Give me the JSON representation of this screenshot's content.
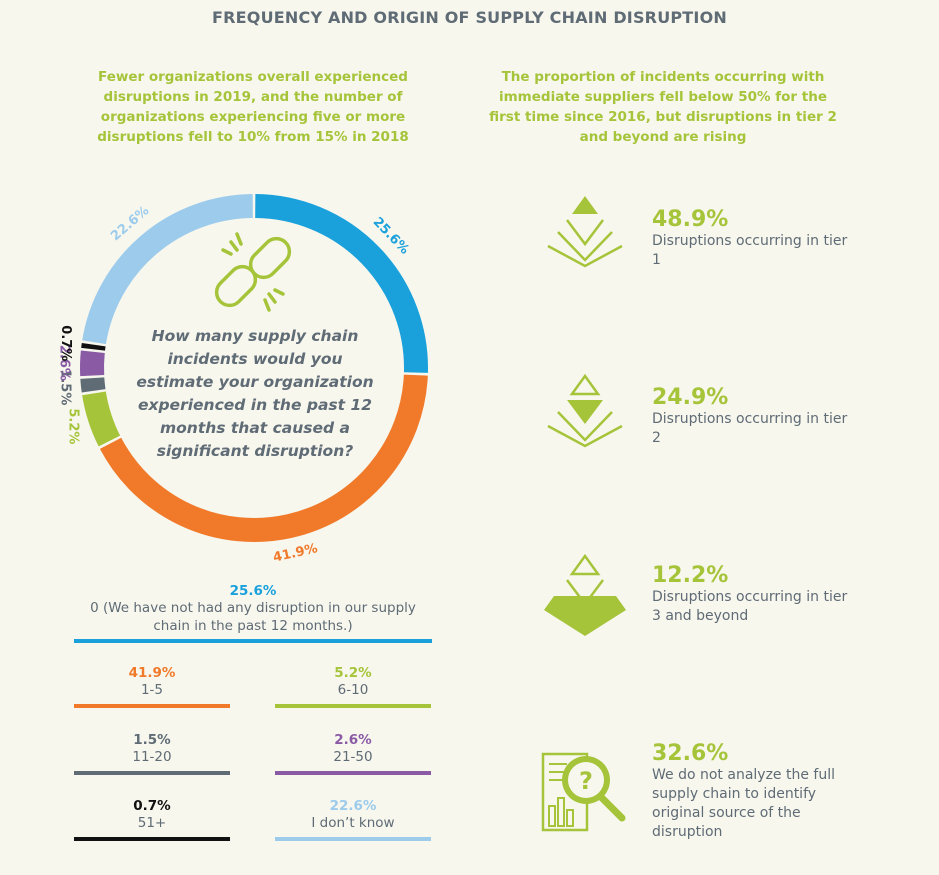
{
  "title": "FREQUENCY AND ORIGIN OF SUPPLY CHAIN DISRUPTION",
  "left_subtitle": "Fewer organizations overall experienced disruptions in 2019, and the number of organizations experiencing five or more disruptions fell to 10% from 15% in 2018",
  "right_subtitle": "The proportion of incidents occurring with immediate suppliers fell below 50% for the first time since 2016, but disruptions in tier 2 and beyond are rising",
  "question": "How many supply chain incidents would you estimate your organization experienced in the past 12 months that caused a significant disruption?",
  "colors": {
    "blue": "#1aa1dc",
    "orange": "#f07a2a",
    "lime": "#a6c43a",
    "slate": "#5f6b75",
    "purple": "#8a5aa5",
    "black": "#111111",
    "lightblue": "#9ccbec"
  },
  "chart_data": {
    "type": "pie",
    "categories": [
      "0 (We have not had any disruption in our supply chain in the past 12 months.)",
      "1-5",
      "6-10",
      "11-20",
      "21-50",
      "51+",
      "I don't know"
    ],
    "values": [
      25.6,
      41.9,
      5.2,
      1.5,
      2.6,
      0.7,
      22.6
    ],
    "value_labels": [
      "25.6%",
      "41.9%",
      "5.2%",
      "1.5%",
      "2.6%",
      "0.7%",
      "22.6%"
    ],
    "series_colors": [
      "#1aa1dc",
      "#f07a2a",
      "#a6c43a",
      "#5f6b75",
      "#8a5aa5",
      "#111111",
      "#9ccbec"
    ],
    "donut": true,
    "legend_position": "bottom"
  },
  "legend": {
    "top": {
      "pct": "25.6%",
      "label": "0 (We have not had any disruption in our supply chain in the past 12 months.)"
    },
    "items": [
      {
        "pct": "41.9%",
        "label": "1-5",
        "color": "#f07a2a"
      },
      {
        "pct": "5.2%",
        "label": "6-10",
        "color": "#a6c43a"
      },
      {
        "pct": "1.5%",
        "label": "11-20",
        "color": "#5f6b75"
      },
      {
        "pct": "2.6%",
        "label": "21-50",
        "color": "#8a5aa5"
      },
      {
        "pct": "0.7%",
        "label": "51+",
        "color": "#111111"
      },
      {
        "pct": "22.6%",
        "label": "I don’t know",
        "color": "#9ccbec"
      }
    ]
  },
  "stats": [
    {
      "value": "48.9%",
      "desc": "Disruptions occurring in tier 1",
      "icon": "pyramid-tier1-icon"
    },
    {
      "value": "24.9%",
      "desc": "Disruptions occurring in tier 2",
      "icon": "pyramid-tier2-icon"
    },
    {
      "value": "12.2%",
      "desc": "Disruptions occurring in tier 3 and beyond",
      "icon": "pyramid-tier3-icon"
    },
    {
      "value": "32.6%",
      "desc": "We do not analyze the full supply chain to identify original source of the disruption",
      "icon": "magnifier-question-icon"
    }
  ]
}
